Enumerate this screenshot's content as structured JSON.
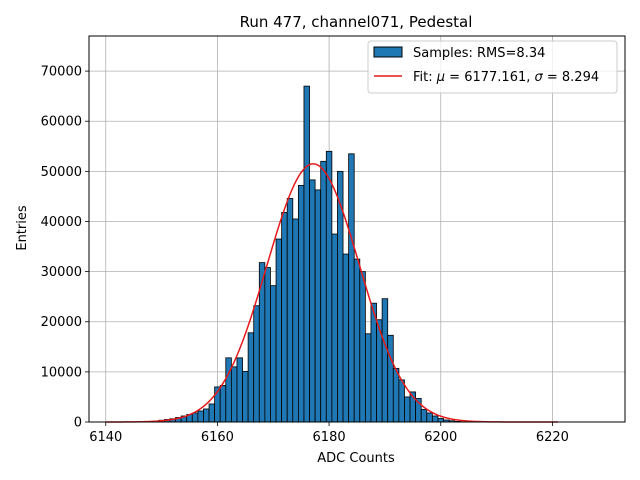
{
  "chart_data": {
    "type": "bar",
    "title": "Run 477, channel071, Pedestal",
    "xlabel": "ADC Counts",
    "ylabel": "Entries",
    "xlim": [
      6137,
      6233
    ],
    "ylim": [
      0,
      77000
    ],
    "xticks": [
      6140,
      6160,
      6180,
      6200,
      6220
    ],
    "yticks": [
      0,
      10000,
      20000,
      30000,
      40000,
      50000,
      60000,
      70000
    ],
    "xtick_labels": [
      "6140",
      "6160",
      "6180",
      "6200",
      "6220"
    ],
    "ytick_labels": [
      "0",
      "10000",
      "20000",
      "30000",
      "40000",
      "50000",
      "60000",
      "70000"
    ],
    "grid": true,
    "bin_width": 1,
    "bar_color": "#1f77b4",
    "fit_color": "#e41a1c",
    "histogram": {
      "name": "Samples: RMS=8.34",
      "bins": [
        6146,
        6147,
        6148,
        6149,
        6150,
        6151,
        6152,
        6153,
        6154,
        6155,
        6156,
        6157,
        6158,
        6159,
        6160,
        6161,
        6162,
        6163,
        6164,
        6165,
        6166,
        6167,
        6168,
        6169,
        6170,
        6171,
        6172,
        6173,
        6174,
        6175,
        6176,
        6177,
        6178,
        6179,
        6180,
        6181,
        6182,
        6183,
        6184,
        6185,
        6186,
        6187,
        6188,
        6189,
        6190,
        6191,
        6192,
        6193,
        6194,
        6195,
        6196,
        6197,
        6198,
        6199,
        6200,
        6201,
        6202,
        6203,
        6204
      ],
      "counts": [
        30,
        60,
        120,
        200,
        350,
        500,
        650,
        900,
        1200,
        1500,
        1800,
        2200,
        2600,
        3600,
        7000,
        7300,
        12800,
        11000,
        12800,
        10100,
        17800,
        23200,
        31800,
        30800,
        27200,
        36500,
        41800,
        44600,
        40500,
        47200,
        67000,
        48300,
        46300,
        52000,
        54000,
        37500,
        50000,
        33500,
        53500,
        32500,
        30000,
        17600,
        23700,
        20400,
        24600,
        17300,
        10700,
        8400,
        5000,
        6000,
        4700,
        2500,
        1800,
        1200,
        700,
        400,
        250,
        120,
        60
      ]
    },
    "fit": {
      "name_prefix": "Fit: ",
      "name_mu": "μ",
      "name_mid": " = 6177.161, ",
      "name_sigma": "σ",
      "name_suffix": " = 8.294",
      "mu": 6177.161,
      "sigma": 8.294,
      "amplitude": 51500,
      "x_range": [
        6140,
        6221
      ]
    },
    "legend_loc": "upper right"
  }
}
